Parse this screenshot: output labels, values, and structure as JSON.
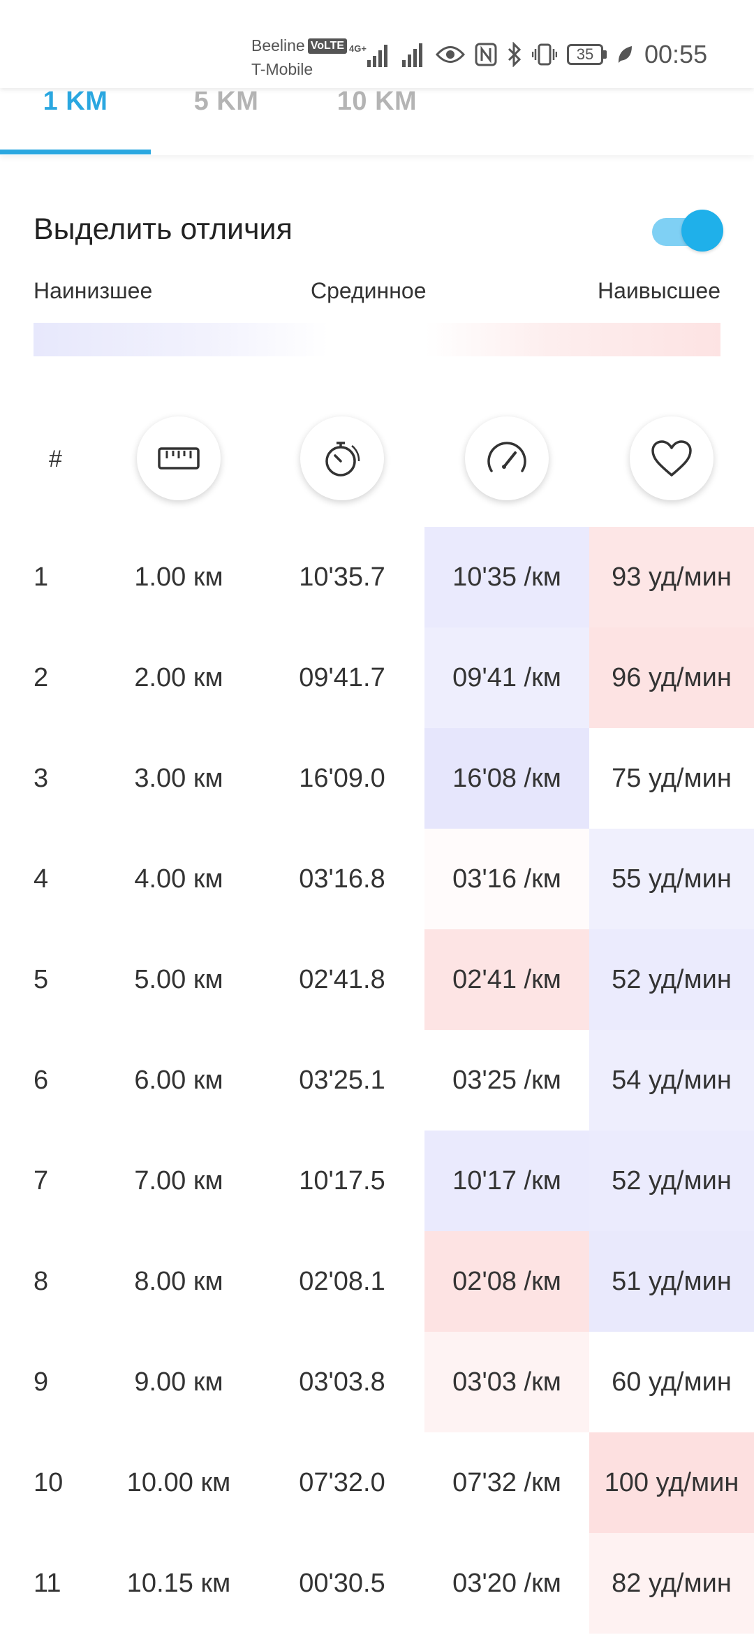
{
  "status_bar": {
    "carrier1": "Beeline",
    "volte": "VoLTE",
    "carrier2": "T-Mobile",
    "network": "4G+",
    "battery": "35",
    "time": "00:55"
  },
  "tabs": [
    {
      "label": "1 KM",
      "active": true
    },
    {
      "label": "5 KM",
      "active": false
    },
    {
      "label": "10 KM",
      "active": false
    }
  ],
  "highlight": {
    "label": "Выделить отличия",
    "enabled": true
  },
  "legend": {
    "low": "Наинизшее",
    "mid": "Срединное",
    "high": "Наивысшее"
  },
  "table": {
    "header_index": "#",
    "header_icons": [
      "ruler-icon",
      "stopwatch-icon",
      "speedometer-icon",
      "heart-icon"
    ],
    "rows": [
      {
        "idx": "1",
        "dist": "1.00 км",
        "time": "10'35.7",
        "pace": "10'35 /км",
        "hr": "93 уд/мин",
        "pace_color": "#eaeafd",
        "hr_color": "#fde6e6"
      },
      {
        "idx": "2",
        "dist": "2.00 км",
        "time": "09'41.7",
        "pace": "09'41 /км",
        "hr": "96 уд/мин",
        "pace_color": "#eeeefd",
        "hr_color": "#fde3e3"
      },
      {
        "idx": "3",
        "dist": "3.00 км",
        "time": "16'09.0",
        "pace": "16'08 /км",
        "hr": "75 уд/мин",
        "pace_color": "#e6e6fc",
        "hr_color": "#ffffff"
      },
      {
        "idx": "4",
        "dist": "4.00 км",
        "time": "03'16.8",
        "pace": "03'16 /км",
        "hr": "55 уд/мин",
        "pace_color": "#fffbfb",
        "hr_color": "#f0f0fd"
      },
      {
        "idx": "5",
        "dist": "5.00 км",
        "time": "02'41.8",
        "pace": "02'41 /км",
        "hr": "52 уд/мин",
        "pace_color": "#fde4e4",
        "hr_color": "#ebebfd"
      },
      {
        "idx": "6",
        "dist": "6.00 км",
        "time": "03'25.1",
        "pace": "03'25 /км",
        "hr": "54 уд/мин",
        "pace_color": "#ffffff",
        "hr_color": "#eeeefd"
      },
      {
        "idx": "7",
        "dist": "7.00 км",
        "time": "10'17.5",
        "pace": "10'17 /км",
        "hr": "52 уд/мин",
        "pace_color": "#eaeafd",
        "hr_color": "#ebebfd"
      },
      {
        "idx": "8",
        "dist": "8.00 км",
        "time": "02'08.1",
        "pace": "02'08 /км",
        "hr": "51 уд/мин",
        "pace_color": "#fde3e3",
        "hr_color": "#e9e9fc"
      },
      {
        "idx": "9",
        "dist": "9.00 км",
        "time": "03'03.8",
        "pace": "03'03 /км",
        "hr": "60 уд/мин",
        "pace_color": "#fef3f3",
        "hr_color": "#ffffff"
      },
      {
        "idx": "10",
        "dist": "10.00 км",
        "time": "07'32.0",
        "pace": "07'32 /км",
        "hr": "100 уд/мин",
        "pace_color": "#ffffff",
        "hr_color": "#fde0e0"
      },
      {
        "idx": "11",
        "dist": "10.15 км",
        "time": "00'30.5",
        "pace": "03'20 /км",
        "hr": "82 уд/мин",
        "pace_color": "#ffffff",
        "hr_color": "#fef2f2"
      }
    ]
  }
}
